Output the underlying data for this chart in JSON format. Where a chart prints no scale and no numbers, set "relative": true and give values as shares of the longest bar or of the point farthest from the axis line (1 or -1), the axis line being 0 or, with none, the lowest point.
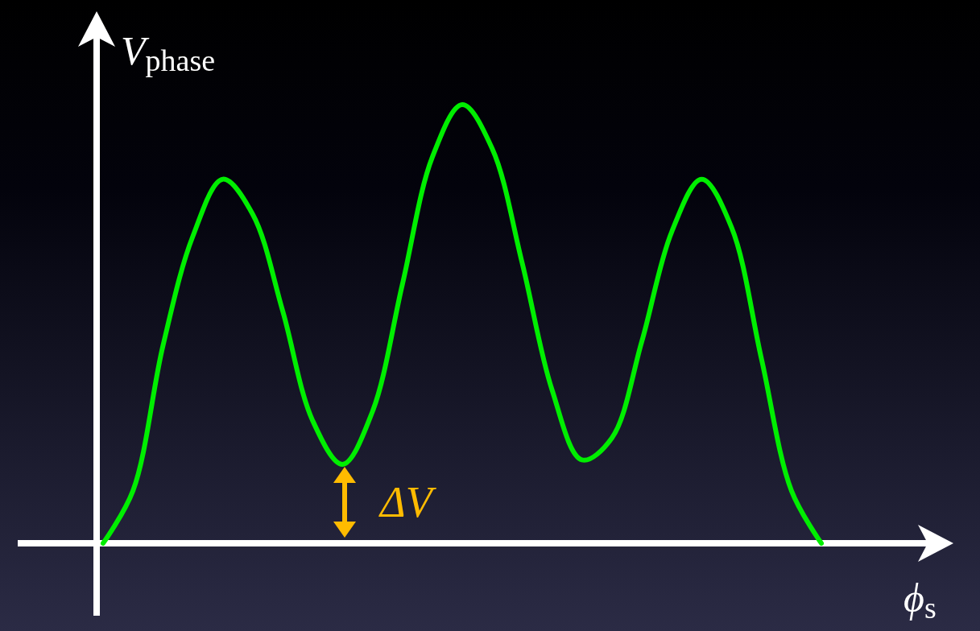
{
  "chart_data": {
    "type": "line",
    "relative": true,
    "xlabel": "ϕ$_{s}$",
    "ylabel": "V$_{phase}$",
    "categories": [
      null,
      null,
      null,
      null,
      null,
      null,
      null,
      null,
      null,
      null,
      null,
      null,
      null,
      null,
      null,
      null,
      null,
      null,
      null,
      null,
      null,
      null,
      null,
      null,
      null
    ],
    "series": [
      {
        "color": "#00ee00",
        "values": [
          0,
          0.12,
          0.45,
          0.7,
          0.83,
          0.75,
          0.53,
          0.28,
          0.18,
          0.3,
          0.59,
          0.88,
          1,
          0.9,
          0.64,
          0.35,
          0.19,
          0.24,
          0.46,
          0.71,
          0.83,
          0.72,
          0.42,
          0.12,
          0
        ]
      }
    ],
    "annotations": [
      "ΔV"
    ],
    "marker": "none",
    "line_style": "solid",
    "grid": false,
    "tick_labels": false
  }
}
